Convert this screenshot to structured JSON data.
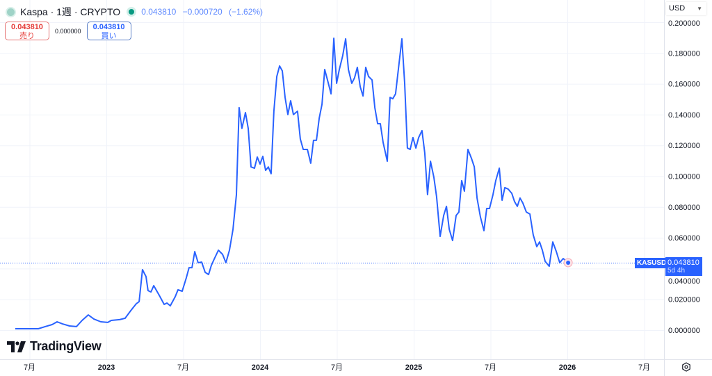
{
  "header": {
    "symbol_title": "Kaspa · 1週 · CRYPTO",
    "last_price": "0.043810",
    "change": "−0.000720",
    "change_pct": "(−1.62%)",
    "symbol_icon": "kaspa-logo-icon",
    "market_status_icon": "market-open-dot-icon"
  },
  "trade": {
    "sell_price": "0.043810",
    "sell_label": "売り",
    "spread": "0.000000",
    "buy_price": "0.043810",
    "buy_label": "買い"
  },
  "price_scale": {
    "currency": "USD",
    "ticks": [
      "0.000000",
      "0.020000",
      "0.040000",
      "0.060000",
      "0.080000",
      "0.100000",
      "0.120000",
      "0.140000",
      "0.160000",
      "0.180000",
      "0.200000"
    ],
    "current_symbol": "KASUSD",
    "current_price": "0.043810",
    "countdown": "5d 4h"
  },
  "time_scale": {
    "labels": [
      "7月",
      "2023",
      "7月",
      "2024",
      "7月",
      "2025",
      "7月",
      "2026",
      "7月"
    ]
  },
  "branding": {
    "logo_text": "TradingView"
  },
  "colors": {
    "line": "#2962ff",
    "sell": "#e53935",
    "buy": "#2962ff",
    "grid": "#f0f3fa"
  },
  "chart_data": {
    "type": "line",
    "series_symbol": "KASUSD",
    "interval": "1週",
    "x_unit": "decimal year",
    "ylim": [
      0,
      0.2
    ],
    "xlim": [
      2022.35,
      3.37
    ],
    "grid": true,
    "x_ticks": [
      2022.5,
      2023.0,
      2023.5,
      2024.0,
      2024.5,
      2025.0,
      2025.5,
      2026.0,
      2026.5
    ],
    "y_ticks": [
      0,
      0.02,
      0.04,
      0.06,
      0.08,
      0.1,
      0.12,
      0.14,
      0.16,
      0.18,
      0.2
    ],
    "points": [
      [
        2022.407,
        0.0009
      ],
      [
        2022.557,
        0.0009
      ],
      [
        2022.602,
        0.0023
      ],
      [
        2022.647,
        0.0036
      ],
      [
        2022.679,
        0.0054
      ],
      [
        2022.715,
        0.004
      ],
      [
        2022.76,
        0.0027
      ],
      [
        2022.805,
        0.0023
      ],
      [
        2022.842,
        0.0063
      ],
      [
        2022.882,
        0.0099
      ],
      [
        2022.919,
        0.0072
      ],
      [
        2022.964,
        0.0054
      ],
      [
        2023.009,
        0.005
      ],
      [
        2023.032,
        0.0063
      ],
      [
        2023.086,
        0.0068
      ],
      [
        2023.122,
        0.0077
      ],
      [
        2023.158,
        0.0126
      ],
      [
        2023.195,
        0.0172
      ],
      [
        2023.213,
        0.0185
      ],
      [
        2023.235,
        0.0393
      ],
      [
        2023.258,
        0.0348
      ],
      [
        2023.271,
        0.0257
      ],
      [
        2023.29,
        0.0248
      ],
      [
        2023.308,
        0.0289
      ],
      [
        2023.344,
        0.0226
      ],
      [
        2023.376,
        0.0167
      ],
      [
        2023.394,
        0.0176
      ],
      [
        2023.416,
        0.0158
      ],
      [
        2023.448,
        0.0217
      ],
      [
        2023.466,
        0.0262
      ],
      [
        2023.493,
        0.0253
      ],
      [
        2023.52,
        0.0339
      ],
      [
        2023.538,
        0.0406
      ],
      [
        2023.557,
        0.0406
      ],
      [
        2023.575,
        0.051
      ],
      [
        2023.597,
        0.0438
      ],
      [
        2023.62,
        0.0442
      ],
      [
        2023.643,
        0.0375
      ],
      [
        2023.665,
        0.0361
      ],
      [
        2023.683,
        0.042
      ],
      [
        2023.701,
        0.046
      ],
      [
        2023.729,
        0.0519
      ],
      [
        2023.756,
        0.0492
      ],
      [
        2023.778,
        0.0438
      ],
      [
        2023.801,
        0.0519
      ],
      [
        2023.824,
        0.0655
      ],
      [
        2023.846,
        0.088
      ],
      [
        2023.864,
        0.1445
      ],
      [
        2023.882,
        0.131
      ],
      [
        2023.905,
        0.1413
      ],
      [
        2023.923,
        0.131
      ],
      [
        2023.941,
        0.106
      ],
      [
        2023.964,
        0.1052
      ],
      [
        2023.982,
        0.1124
      ],
      [
        2024.0,
        0.1079
      ],
      [
        2024.018,
        0.1129
      ],
      [
        2024.036,
        0.1038
      ],
      [
        2024.054,
        0.106
      ],
      [
        2024.072,
        0.1016
      ],
      [
        2024.09,
        0.1422
      ],
      [
        2024.109,
        0.1648
      ],
      [
        2024.127,
        0.1716
      ],
      [
        2024.145,
        0.1684
      ],
      [
        2024.163,
        0.1512
      ],
      [
        2024.181,
        0.14
      ],
      [
        2024.199,
        0.149
      ],
      [
        2024.217,
        0.14
      ],
      [
        2024.244,
        0.1422
      ],
      [
        2024.262,
        0.1242
      ],
      [
        2024.281,
        0.1174
      ],
      [
        2024.308,
        0.1174
      ],
      [
        2024.33,
        0.1084
      ],
      [
        2024.348,
        0.1233
      ],
      [
        2024.367,
        0.1233
      ],
      [
        2024.385,
        0.1377
      ],
      [
        2024.403,
        0.1467
      ],
      [
        2024.421,
        0.1693
      ],
      [
        2024.439,
        0.1625
      ],
      [
        2024.462,
        0.1535
      ],
      [
        2024.48,
        0.1896
      ],
      [
        2024.498,
        0.1603
      ],
      [
        2024.516,
        0.1693
      ],
      [
        2024.538,
        0.1783
      ],
      [
        2024.557,
        0.1892
      ],
      [
        2024.575,
        0.1693
      ],
      [
        2024.597,
        0.1603
      ],
      [
        2024.615,
        0.1639
      ],
      [
        2024.633,
        0.1707
      ],
      [
        2024.652,
        0.158
      ],
      [
        2024.67,
        0.1521
      ],
      [
        2024.688,
        0.1707
      ],
      [
        2024.706,
        0.1648
      ],
      [
        2024.729,
        0.1625
      ],
      [
        2024.747,
        0.1445
      ],
      [
        2024.765,
        0.1341
      ],
      [
        2024.783,
        0.1341
      ],
      [
        2024.801,
        0.1219
      ],
      [
        2024.828,
        0.1097
      ],
      [
        2024.846,
        0.1512
      ],
      [
        2024.864,
        0.1503
      ],
      [
        2024.882,
        0.1535
      ],
      [
        2024.9,
        0.1693
      ],
      [
        2024.923,
        0.1892
      ],
      [
        2024.941,
        0.1603
      ],
      [
        2024.959,
        0.1183
      ],
      [
        2024.977,
        0.1174
      ],
      [
        2024.995,
        0.1251
      ],
      [
        2025.014,
        0.1183
      ],
      [
        2025.032,
        0.1251
      ],
      [
        2025.054,
        0.1296
      ],
      [
        2025.072,
        0.1151
      ],
      [
        2025.09,
        0.088
      ],
      [
        2025.109,
        0.1097
      ],
      [
        2025.131,
        0.0993
      ],
      [
        2025.149,
        0.0867
      ],
      [
        2025.172,
        0.0609
      ],
      [
        2025.195,
        0.0745
      ],
      [
        2025.213,
        0.0804
      ],
      [
        2025.231,
        0.0655
      ],
      [
        2025.253,
        0.0582
      ],
      [
        2025.276,
        0.0745
      ],
      [
        2025.294,
        0.0767
      ],
      [
        2025.312,
        0.0971
      ],
      [
        2025.33,
        0.0903
      ],
      [
        2025.353,
        0.1174
      ],
      [
        2025.376,
        0.1115
      ],
      [
        2025.394,
        0.1061
      ],
      [
        2025.412,
        0.0858
      ],
      [
        2025.434,
        0.0736
      ],
      [
        2025.457,
        0.0646
      ],
      [
        2025.475,
        0.079
      ],
      [
        2025.493,
        0.079
      ],
      [
        2025.516,
        0.088
      ],
      [
        2025.534,
        0.0971
      ],
      [
        2025.557,
        0.1052
      ],
      [
        2025.575,
        0.0844
      ],
      [
        2025.593,
        0.0926
      ],
      [
        2025.615,
        0.0916
      ],
      [
        2025.638,
        0.0889
      ],
      [
        2025.656,
        0.0835
      ],
      [
        2025.674,
        0.0804
      ],
      [
        2025.692,
        0.0858
      ],
      [
        2025.71,
        0.0826
      ],
      [
        2025.733,
        0.0767
      ],
      [
        2025.756,
        0.0754
      ],
      [
        2025.778,
        0.0618
      ],
      [
        2025.801,
        0.0542
      ],
      [
        2025.819,
        0.0573
      ],
      [
        2025.837,
        0.0519
      ],
      [
        2025.855,
        0.0447
      ],
      [
        2025.882,
        0.0415
      ],
      [
        2025.905,
        0.0573
      ],
      [
        2025.928,
        0.051
      ],
      [
        2025.95,
        0.0438
      ],
      [
        2025.973,
        0.0465
      ],
      [
        2026.005,
        0.04381
      ]
    ]
  }
}
